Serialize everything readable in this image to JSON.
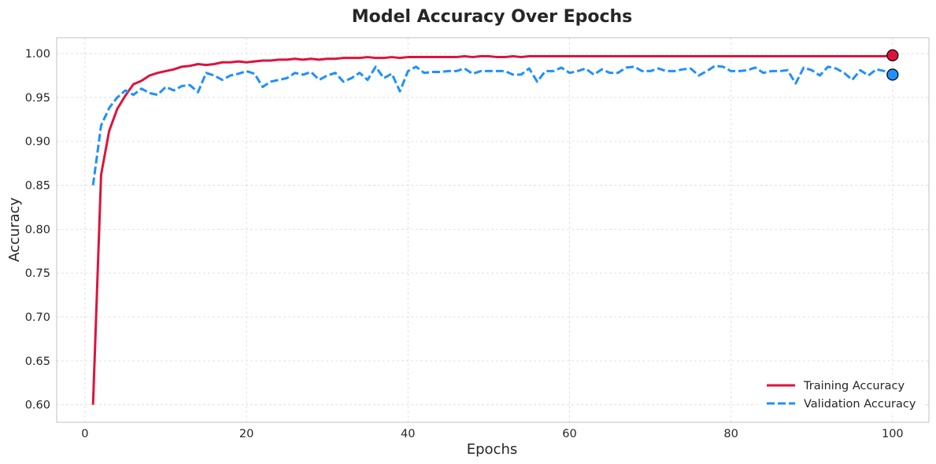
{
  "chart_data": {
    "type": "line",
    "title": "Model Accuracy Over Epochs",
    "xlabel": "Epochs",
    "ylabel": "Accuracy",
    "xlim": [
      -3.5,
      104.5
    ],
    "ylim": [
      0.58,
      1.018
    ],
    "xticks": [
      0,
      20,
      40,
      60,
      80,
      100
    ],
    "yticks": [
      0.6,
      0.65,
      0.7,
      0.75,
      0.8,
      0.85,
      0.9,
      0.95,
      1.0
    ],
    "ytick_labels": [
      "0.60",
      "0.65",
      "0.70",
      "0.75",
      "0.80",
      "0.85",
      "0.90",
      "0.95",
      "1.00"
    ],
    "grid": true,
    "legend_position": "bottom-right",
    "x": [
      1,
      2,
      3,
      4,
      5,
      6,
      7,
      8,
      9,
      10,
      11,
      12,
      13,
      14,
      15,
      16,
      17,
      18,
      19,
      20,
      21,
      22,
      23,
      24,
      25,
      26,
      27,
      28,
      29,
      30,
      31,
      32,
      33,
      34,
      35,
      36,
      37,
      38,
      39,
      40,
      41,
      42,
      43,
      44,
      45,
      46,
      47,
      48,
      49,
      50,
      51,
      52,
      53,
      54,
      55,
      56,
      57,
      58,
      59,
      60,
      61,
      62,
      63,
      64,
      65,
      66,
      67,
      68,
      69,
      70,
      71,
      72,
      73,
      74,
      75,
      76,
      77,
      78,
      79,
      80,
      81,
      82,
      83,
      84,
      85,
      86,
      87,
      88,
      89,
      90,
      91,
      92,
      93,
      94,
      95,
      96,
      97,
      98,
      99,
      100
    ],
    "series": [
      {
        "name": "Training Accuracy",
        "color": "#dc143c",
        "style": "solid",
        "values": [
          0.6,
          0.862,
          0.912,
          0.937,
          0.952,
          0.965,
          0.969,
          0.975,
          0.978,
          0.98,
          0.982,
          0.985,
          0.986,
          0.988,
          0.987,
          0.988,
          0.99,
          0.99,
          0.991,
          0.99,
          0.991,
          0.992,
          0.992,
          0.993,
          0.993,
          0.994,
          0.993,
          0.994,
          0.993,
          0.994,
          0.994,
          0.995,
          0.995,
          0.995,
          0.996,
          0.995,
          0.995,
          0.996,
          0.995,
          0.996,
          0.996,
          0.996,
          0.996,
          0.996,
          0.996,
          0.996,
          0.997,
          0.996,
          0.997,
          0.997,
          0.996,
          0.996,
          0.997,
          0.996,
          0.997,
          0.997,
          0.997,
          0.997,
          0.997,
          0.997,
          0.997,
          0.997,
          0.997,
          0.997,
          0.997,
          0.997,
          0.997,
          0.997,
          0.997,
          0.997,
          0.997,
          0.997,
          0.997,
          0.997,
          0.997,
          0.997,
          0.997,
          0.997,
          0.997,
          0.997,
          0.997,
          0.997,
          0.997,
          0.997,
          0.997,
          0.997,
          0.997,
          0.997,
          0.997,
          0.997,
          0.997,
          0.997,
          0.997,
          0.997,
          0.997,
          0.997,
          0.997,
          0.997,
          0.997,
          0.998
        ]
      },
      {
        "name": "Validation Accuracy",
        "color": "#1e90ff",
        "style": "dashed",
        "values": [
          0.85,
          0.918,
          0.938,
          0.95,
          0.958,
          0.953,
          0.96,
          0.955,
          0.953,
          0.962,
          0.958,
          0.963,
          0.964,
          0.956,
          0.978,
          0.975,
          0.97,
          0.975,
          0.977,
          0.98,
          0.977,
          0.962,
          0.968,
          0.97,
          0.972,
          0.978,
          0.976,
          0.979,
          0.97,
          0.975,
          0.978,
          0.968,
          0.972,
          0.978,
          0.97,
          0.985,
          0.972,
          0.977,
          0.957,
          0.98,
          0.985,
          0.978,
          0.979,
          0.979,
          0.98,
          0.98,
          0.983,
          0.977,
          0.98,
          0.98,
          0.98,
          0.98,
          0.976,
          0.976,
          0.983,
          0.968,
          0.98,
          0.98,
          0.984,
          0.978,
          0.98,
          0.983,
          0.976,
          0.982,
          0.978,
          0.978,
          0.984,
          0.985,
          0.98,
          0.98,
          0.983,
          0.98,
          0.98,
          0.982,
          0.983,
          0.975,
          0.98,
          0.986,
          0.985,
          0.98,
          0.98,
          0.981,
          0.984,
          0.978,
          0.98,
          0.98,
          0.981,
          0.966,
          0.984,
          0.981,
          0.975,
          0.985,
          0.983,
          0.978,
          0.97,
          0.981,
          0.975,
          0.982,
          0.98,
          0.976
        ]
      }
    ]
  }
}
